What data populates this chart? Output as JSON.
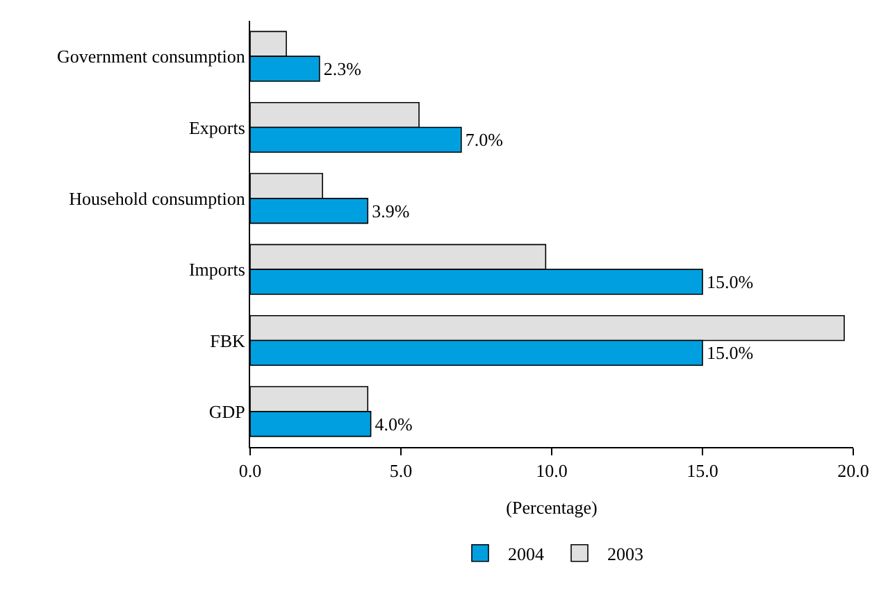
{
  "chart_data": {
    "type": "bar",
    "orientation": "horizontal",
    "categories": [
      "Government consumption",
      "Exports",
      "Household consumption",
      "Imports",
      "FBK",
      "GDP"
    ],
    "series": [
      {
        "name": "2003",
        "color": "#e0e0e0",
        "values": [
          1.2,
          5.6,
          2.4,
          9.8,
          19.7,
          3.9
        ]
      },
      {
        "name": "2004",
        "color": "#00a0e0",
        "values": [
          2.3,
          7.0,
          3.9,
          15.0,
          15.0,
          4.0
        ],
        "value_labels": [
          "2.3%",
          "7.0%",
          "3.9%",
          "15.0%",
          "15.0%",
          "4.0%"
        ]
      }
    ],
    "xlabel": "(Percentage)",
    "xlim": [
      0,
      20
    ],
    "xticks": [
      {
        "value": 0,
        "label": "0.0"
      },
      {
        "value": 5,
        "label": "5.0"
      },
      {
        "value": 10,
        "label": "10.0"
      },
      {
        "value": 15,
        "label": "15.0"
      },
      {
        "value": 20,
        "label": "20.0"
      }
    ],
    "legend": "bottom"
  }
}
